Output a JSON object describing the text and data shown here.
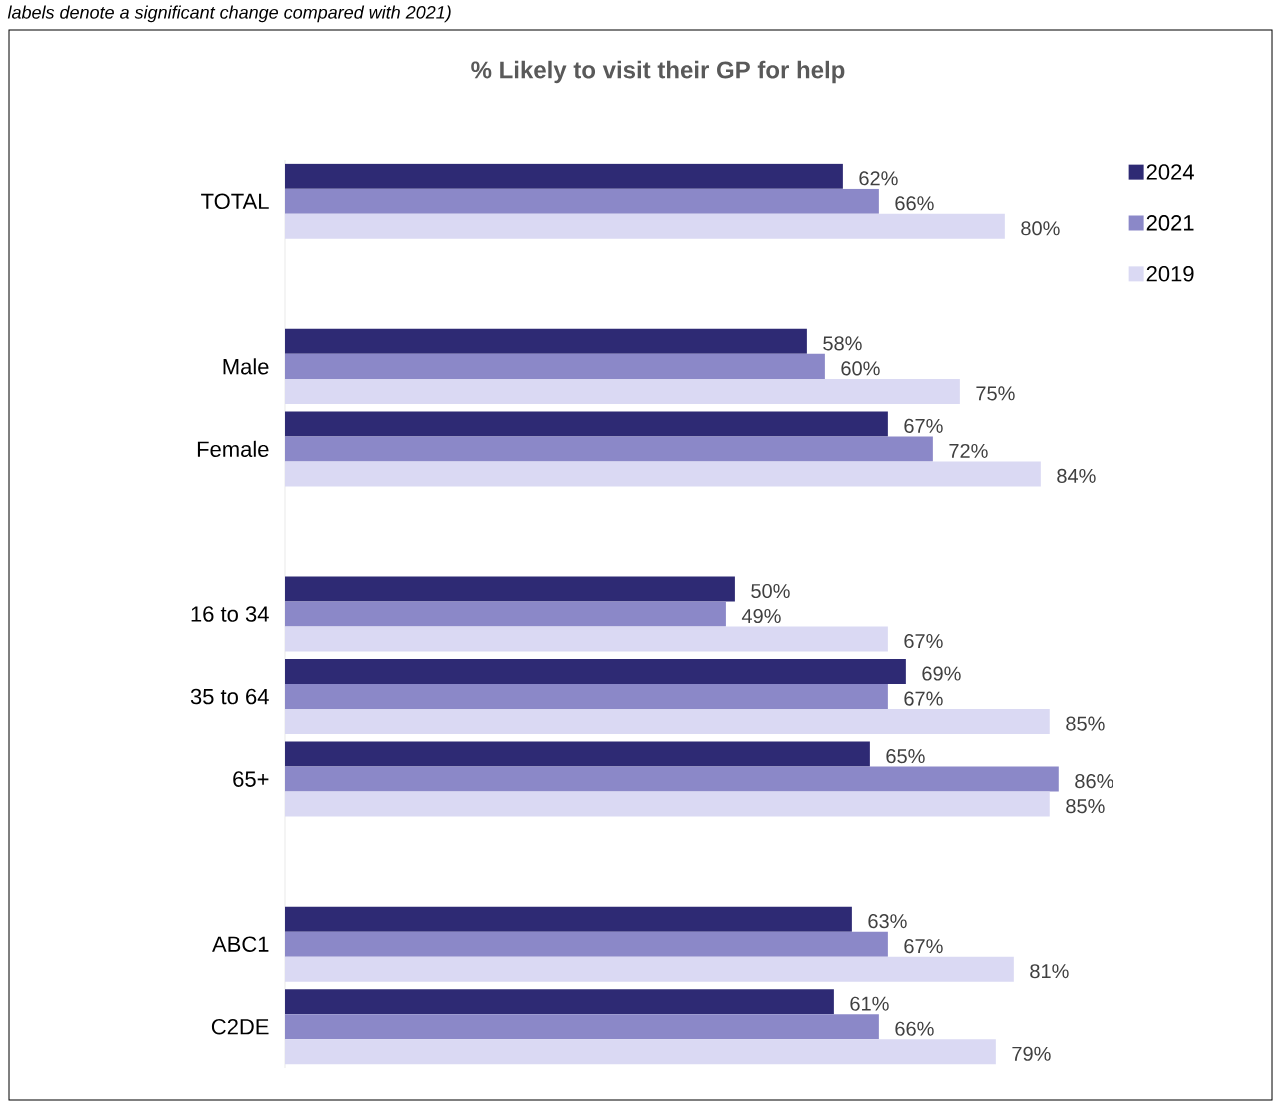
{
  "chart_data": {
    "type": "bar",
    "orientation": "horizontal",
    "title": "% Likely to visit their GP for help",
    "annotations": [
      "labels denote a significant change compared with 2021)"
    ],
    "categories": [
      "TOTAL",
      null,
      "Male",
      "Female",
      null,
      "16 to 34",
      "35 to 64",
      "65+",
      null,
      "ABC1",
      "C2DE"
    ],
    "series": [
      {
        "name": "2024",
        "color": "#2e2a74",
        "values": [
          62,
          null,
          58,
          67,
          null,
          50,
          69,
          65,
          null,
          63,
          61
        ],
        "value_labels": [
          "62%",
          null,
          "58%",
          "67%",
          null,
          "50%",
          "69%",
          "65%",
          null,
          "63%",
          "61%"
        ]
      },
      {
        "name": "2021",
        "color": "#8b88c8",
        "values": [
          66,
          null,
          60,
          72,
          null,
          49,
          67,
          86,
          null,
          67,
          66
        ],
        "value_labels": [
          "66%",
          null,
          "60%",
          "72%",
          null,
          "49%",
          "67%",
          "86%",
          null,
          "67%",
          "66%"
        ]
      },
      {
        "name": "2019",
        "color": "#dad9f3",
        "values": [
          80,
          null,
          75,
          84,
          null,
          67,
          85,
          85,
          null,
          81,
          79
        ],
        "value_labels": [
          "80%",
          null,
          "75%",
          "84%",
          null,
          "67%",
          "85%",
          "85%",
          null,
          "81%",
          "79%"
        ]
      }
    ],
    "tick_labels": "y",
    "legend": "right"
  }
}
